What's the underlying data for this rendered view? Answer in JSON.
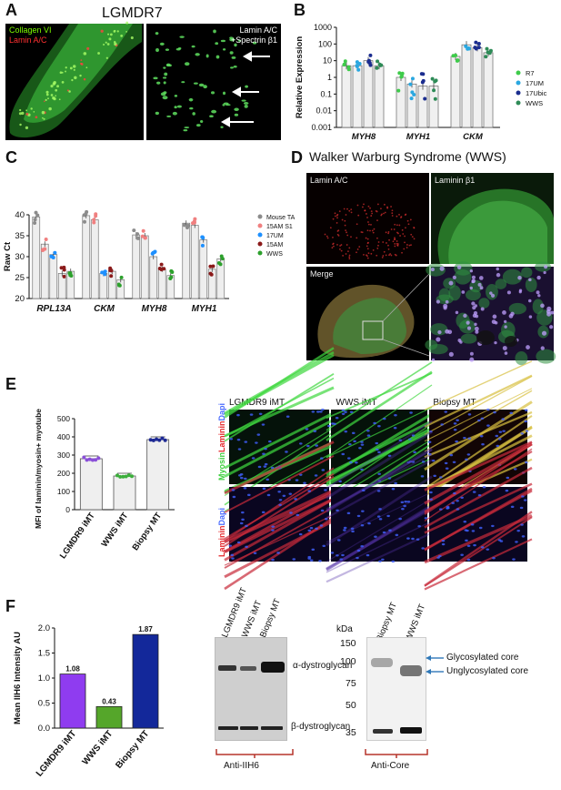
{
  "panels": {
    "A": {
      "letter": "A",
      "title": "LGMDR7",
      "left_label_1": "Collagen VI",
      "left_label_2": "Lamin A/C",
      "right_label_1": "Lamin A/C",
      "right_label_2": "+Spectrin β1",
      "color_green": "#3fd13f",
      "color_red": "#e5252a"
    },
    "B": {
      "letter": "B",
      "chart_data": {
        "type": "bar",
        "ylabel": "Relative Expression",
        "yscale": "log",
        "yticks": [
          "1000",
          "100",
          "10",
          "1",
          "0.1",
          "0.01",
          "0.001"
        ],
        "ylim": [
          0.001,
          1000
        ],
        "categories": [
          "MYH8",
          "MYH1",
          "CKM"
        ],
        "legend_position": "right",
        "series": [
          {
            "name": "R7",
            "color": "#3ecb4a",
            "values": [
              5,
              1,
              18
            ]
          },
          {
            "name": "17UM",
            "color": "#2aa7e0",
            "values": [
              5,
              0.4,
              90
            ]
          },
          {
            "name": "17Ubic",
            "color": "#1b2d8f",
            "values": [
              10,
              0.3,
              60
            ]
          },
          {
            "name": "WWS",
            "color": "#2e8b57",
            "values": [
              5,
              0.3,
              30
            ]
          }
        ]
      }
    },
    "C": {
      "letter": "C",
      "chart_data": {
        "type": "bar",
        "ylabel": "Raw Ct",
        "ylim": [
          20,
          40
        ],
        "yticks": [
          "40",
          "35",
          "30",
          "25",
          "20"
        ],
        "categories": [
          "RPL13A",
          "CKM",
          "MYH8",
          "MYH1"
        ],
        "legend_position": "right",
        "series": [
          {
            "name": "Mouse TA",
            "color": "#8c8c8c",
            "values": [
              39.5,
              39.8,
              35.2,
              38.0
            ]
          },
          {
            "name": "15AM S1",
            "color": "#f08080",
            "values": [
              33.0,
              38.8,
              35.0,
              37.5
            ]
          },
          {
            "name": "17UM",
            "color": "#1e90ff",
            "values": [
              30.5,
              26.0,
              30.0,
              34.0
            ]
          },
          {
            "name": "15AM",
            "color": "#8b1a1a",
            "values": [
              26.0,
              26.5,
              27.0,
              27.0
            ]
          },
          {
            "name": "WWS",
            "color": "#2ca02c",
            "values": [
              26.5,
              24.5,
              25.5,
              29.5
            ]
          }
        ]
      }
    },
    "D": {
      "letter": "D",
      "title": "Walker Warburg Syndrome (WWS)",
      "label_1": "Lamin A/C",
      "label_2": "Laminin β1",
      "label_3": "Merge"
    },
    "E": {
      "letter": "E",
      "chart_data": {
        "type": "bar",
        "ylabel": "MFI of laminin/myosin+ myotube",
        "ylim": [
          0,
          500
        ],
        "yticks": [
          "500",
          "400",
          "300",
          "200",
          "100",
          "0"
        ],
        "categories": [
          "LGMDR9 iMT",
          "WWS iMT",
          "Biopsy MT"
        ],
        "values": [
          280,
          185,
          385
        ],
        "colors": [
          "#8a4fd8",
          "#3cae3c",
          "#1e2a94"
        ]
      },
      "micro_col_1": "LGMDR9 iMT",
      "micro_col_2": "WWS iMT",
      "micro_col_3": "Biopsy MT",
      "row1_label_a": "Myosin",
      "row1_label_b": "Laminin",
      "row1_label_c": "Dapi",
      "row2_label_a": "Laminin",
      "row2_label_b": "Dapi"
    },
    "F": {
      "letter": "F",
      "chart_data": {
        "type": "bar",
        "ylabel": "Mean IIH6 Intensity AU",
        "ylim": [
          0,
          2.0
        ],
        "yticks": [
          "2.0",
          "1.5",
          "1.0",
          "0.5",
          "0.0"
        ],
        "categories": [
          "LGMDR9 iMT",
          "WWS iMT",
          "Biopsy MT"
        ],
        "values": [
          1.08,
          0.43,
          1.87
        ],
        "value_labels": [
          "1.08",
          "0.43",
          "1.87"
        ],
        "colors": [
          "#8f3cf0",
          "#55a62a",
          "#13289a"
        ]
      },
      "blot1_lanes": [
        "LGMDR9 iMT",
        "WWS iMT",
        "Biopsy MT"
      ],
      "blot1_band_1": "α-dystroglycan",
      "blot1_band_2": "β-dystroglycan",
      "blot1_caption": "Anti-IIH6",
      "blot2_lanes": [
        "Biopsy MT",
        "WWS iMT"
      ],
      "blot2_kda_label": "kDa",
      "blot2_markers": [
        "150",
        "100",
        "75",
        "50",
        "35"
      ],
      "blot2_arrow_1": "Glycosylated core",
      "blot2_arrow_2": "Unglycosylated core",
      "blot2_caption": "Anti-Core"
    }
  }
}
